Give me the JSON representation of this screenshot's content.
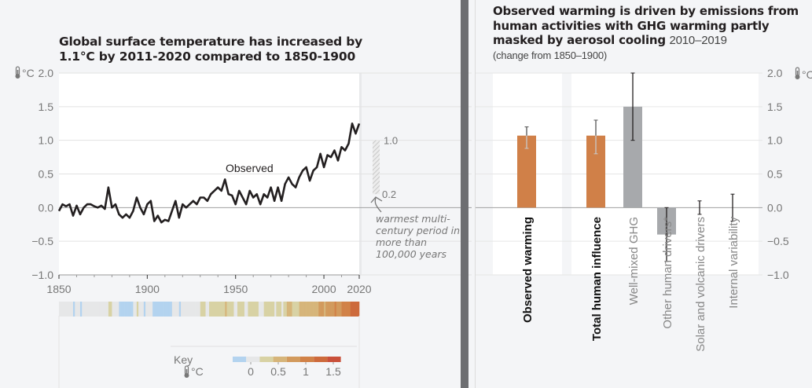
{
  "chart_data": [
    {
      "type": "line",
      "title": "Global surface temperature has increased by 1.1°C by 2011-2020 compared to 1850-1900",
      "xlabel": "",
      "ylabel": "°C",
      "unit_label": "°C",
      "xlim": [
        1850,
        2020
      ],
      "ylim": [
        -1.0,
        2.0
      ],
      "x_ticks": [
        "1850",
        "1900",
        "1950",
        "2000",
        "2020"
      ],
      "y_ticks": [
        "2.0",
        "1.5",
        "1.0",
        "0.5",
        "0.0",
        "−0.5",
        "−1.0"
      ],
      "grid": true,
      "series": [
        {
          "name": "Observed",
          "x": [
            1850,
            1852,
            1854,
            1856,
            1858,
            1860,
            1862,
            1864,
            1866,
            1868,
            1870,
            1872,
            1874,
            1876,
            1878,
            1880,
            1882,
            1884,
            1886,
            1888,
            1890,
            1892,
            1894,
            1896,
            1898,
            1900,
            1902,
            1904,
            1906,
            1908,
            1910,
            1912,
            1914,
            1916,
            1918,
            1920,
            1922,
            1924,
            1926,
            1928,
            1930,
            1932,
            1934,
            1936,
            1938,
            1940,
            1942,
            1944,
            1946,
            1948,
            1950,
            1952,
            1954,
            1956,
            1958,
            1960,
            1962,
            1964,
            1966,
            1968,
            1970,
            1972,
            1974,
            1976,
            1978,
            1980,
            1982,
            1984,
            1986,
            1988,
            1990,
            1992,
            1994,
            1996,
            1998,
            2000,
            2002,
            2004,
            2006,
            2008,
            2010,
            2012,
            2014,
            2016,
            2018,
            2020
          ],
          "values": [
            -0.05,
            0.05,
            0.02,
            0.05,
            -0.12,
            0.03,
            -0.1,
            0.0,
            0.05,
            0.05,
            0.02,
            0.0,
            0.03,
            -0.02,
            0.3,
            0.0,
            0.05,
            -0.1,
            -0.15,
            -0.1,
            -0.15,
            -0.05,
            0.15,
            0.0,
            -0.1,
            0.05,
            0.1,
            -0.2,
            -0.12,
            -0.22,
            -0.18,
            -0.2,
            -0.05,
            0.1,
            -0.15,
            0.05,
            0.0,
            0.05,
            0.1,
            0.05,
            0.15,
            0.15,
            0.1,
            0.2,
            0.25,
            0.3,
            0.25,
            0.42,
            0.2,
            0.18,
            0.05,
            0.25,
            0.15,
            0.05,
            0.25,
            0.15,
            0.2,
            0.05,
            0.2,
            0.15,
            0.3,
            0.1,
            0.3,
            0.1,
            0.35,
            0.45,
            0.35,
            0.3,
            0.45,
            0.55,
            0.6,
            0.4,
            0.55,
            0.6,
            0.8,
            0.6,
            0.78,
            0.75,
            0.85,
            0.7,
            0.9,
            0.85,
            0.95,
            1.25,
            1.1,
            1.25
          ]
        }
      ],
      "annotations": [
        {
          "text": "Observed",
          "x": 1950,
          "y": 0.55
        },
        {
          "text": "warmest multi-century period in more than 100,000 years",
          "range": [
            0.2,
            1.0
          ],
          "labels": [
            "1.0",
            "0.2"
          ]
        }
      ],
      "stripes": {
        "description": "annual warming stripes 1850-2020",
        "key_label": "Key",
        "key_unit": "°C",
        "key_ticks": [
          "0",
          "0.5",
          "1",
          "1.5"
        ],
        "key_colors": [
          "#b3d3ef",
          "#e6e7e8",
          "#d8d2a4",
          "#d6b57a",
          "#d29a5d",
          "#d18248",
          "#cd6a3c",
          "#c9503a"
        ]
      }
    },
    {
      "type": "bar",
      "title": "Observed warming is driven by emissions from human activities with GHG warming partly masked by aerosol cooling",
      "title_period": "2010–2019",
      "subtitle": "(change from 1850–1900)",
      "ylabel": "°C",
      "unit_label": "°C",
      "ylim": [
        -1.0,
        2.0
      ],
      "y_ticks": [
        "2.0",
        "1.5",
        "1.0",
        "0.5",
        "0.0",
        "−0.5",
        "−1.0"
      ],
      "grid": true,
      "categories": [
        "Observed warming",
        "Total human influence",
        "Well-mixed GHG",
        "Other human drivers*",
        "Solar and volcanic drivers",
        "Internal variability"
      ],
      "values": [
        1.07,
        1.07,
        1.5,
        -0.4,
        0.0,
        0.0
      ],
      "error_low": [
        0.88,
        0.8,
        1.0,
        -0.8,
        -0.1,
        -0.2
      ],
      "error_high": [
        1.2,
        1.3,
        2.0,
        0.0,
        0.1,
        0.2
      ],
      "colors": [
        "#d08048",
        "#d08048",
        "#a7a9ac",
        "#a7a9ac",
        "#a7a9ac",
        "#a7a9ac"
      ],
      "bold_labels": [
        true,
        true,
        false,
        false,
        false,
        false
      ]
    }
  ]
}
